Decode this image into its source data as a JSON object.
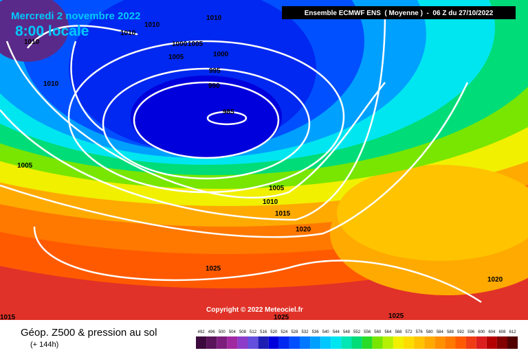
{
  "header": {
    "date": "Mercredi 2 novembre 2022",
    "time": "8:00 locale",
    "model": "Ensemble ECMWF ENS  ( Moyenne )  -  06 Z du 27/10/2022"
  },
  "copyright": "Copyright © 2022 Meteociel.fr",
  "footer": {
    "title": "Géop. Z500 & pression au sol",
    "lead": "(+ 144h)"
  },
  "isobar_labels": [
    1010,
    1010,
    1010,
    1010,
    1000,
    1005,
    1000,
    1005,
    995,
    990,
    1010,
    985,
    1005,
    1005,
    1010,
    1015,
    1020,
    1025,
    1020,
    1015,
    1025,
    1025
  ],
  "scale": {
    "values": [
      492,
      496,
      500,
      504,
      508,
      512,
      516,
      520,
      524,
      528,
      532,
      536,
      540,
      544,
      548,
      552,
      556,
      560,
      564,
      568,
      572,
      576,
      580,
      584,
      588,
      592,
      596,
      600,
      604,
      608,
      612
    ],
    "colors": [
      "#3c0a3c",
      "#5a145a",
      "#7d1e7d",
      "#a028a0",
      "#8c3cc8",
      "#6450dc",
      "#1e1eb4",
      "#0000dc",
      "#0028f0",
      "#0050ff",
      "#0078ff",
      "#00a0ff",
      "#00c8ff",
      "#00e6f0",
      "#00e6b4",
      "#00dc78",
      "#28dc28",
      "#78e600",
      "#b4f000",
      "#f0f000",
      "#ffdc00",
      "#ffc300",
      "#ffaa00",
      "#ff9100",
      "#ff7800",
      "#ff5a00",
      "#f03c14",
      "#dc1e1e",
      "#b40000",
      "#820000",
      "#500000"
    ]
  }
}
